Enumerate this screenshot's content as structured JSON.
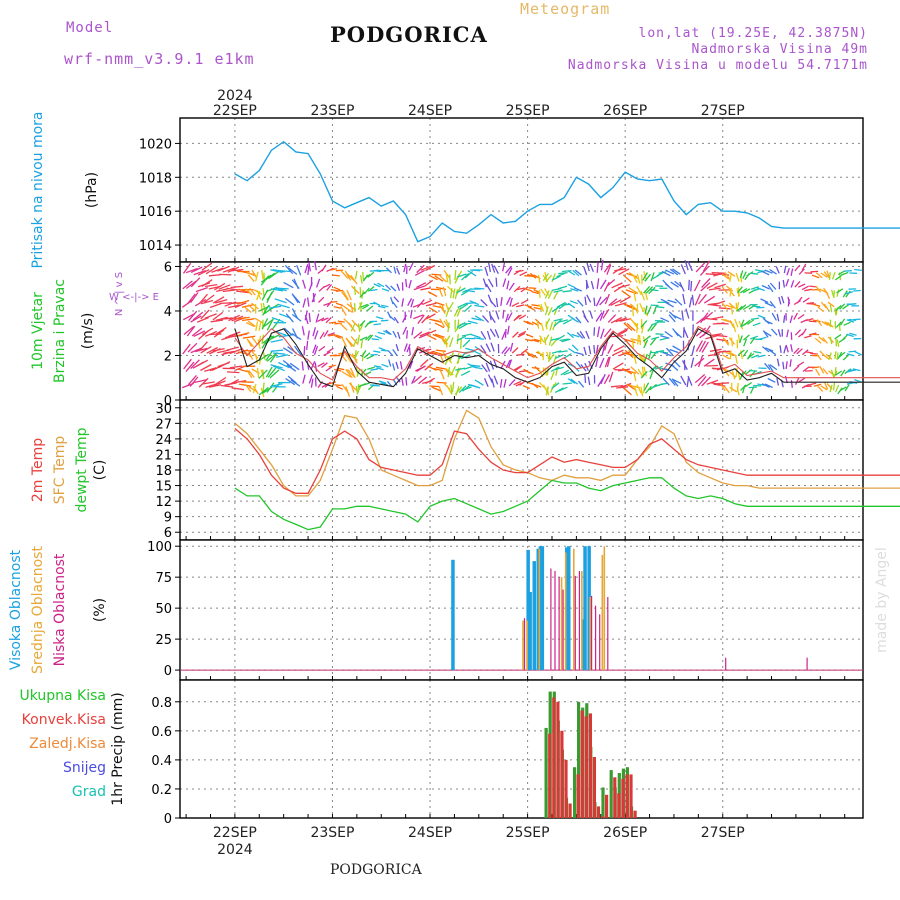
{
  "header": {
    "model_label": "Model",
    "model_name": "wrf-nmm_v3.9.1 e1km",
    "title": "PODGORICA",
    "meteogram_label": "Meteogram",
    "lonlat": "lon,lat (19.25E, 42.3875N)",
    "elevation": "Nadmorska Visina 49m",
    "model_elevation": "Nadmorska Visina u modelu 54.7171m",
    "footer_title": "PODGORICA",
    "watermark": "made by Angel"
  },
  "colors": {
    "pressure": "#1ba1e2",
    "temp2m": "#e8413c",
    "sfc": "#e0a040",
    "dewpt": "#22c52a",
    "high_cloud": "#1ba1e2",
    "mid_cloud": "#e6a838",
    "low_cloud": "#cc2288",
    "total_precip": "#3b9a2f",
    "conv_precip": "#d83838",
    "grid": "#888888"
  },
  "chart_data": [
    {
      "id": "pressure",
      "type": "line",
      "ylabel_lines": [
        "Pritisak na nivou mora",
        "(hPa)"
      ],
      "ylim": [
        1013,
        1021.5
      ],
      "yticks": [
        1014,
        1016,
        1018,
        1020
      ],
      "top_axis_year": "2024",
      "top_axis_dates": [
        "22SEP",
        "23SEP",
        "24SEP",
        "25SEP",
        "26SEP",
        "27SEP"
      ],
      "x_hours": [
        0,
        3,
        6,
        9,
        12,
        15,
        18,
        21,
        24,
        27,
        30,
        33,
        36,
        39,
        42,
        45,
        48,
        51,
        54,
        57,
        60,
        63,
        66,
        69,
        72,
        75,
        78,
        81,
        84,
        87,
        90,
        93,
        96,
        99,
        102,
        105,
        108,
        111,
        114,
        117,
        120,
        123,
        126,
        129,
        132,
        135,
        138,
        141,
        144,
        147,
        150,
        153,
        156,
        159,
        162,
        165,
        168
      ],
      "series": [
        {
          "name": "",
          "values": [
            1018.2,
            1017.8,
            1018.4,
            1019.6,
            1020.1,
            1019.5,
            1019.4,
            1018.2,
            1016.6,
            1016.2,
            1016.5,
            1016.8,
            1016.3,
            1016.6,
            1015.8,
            1014.2,
            1014.5,
            1015.3,
            1014.8,
            1014.7,
            1015.2,
            1015.8,
            1015.3,
            1015.4,
            1016.0,
            1016.4,
            1016.4,
            1016.8,
            1018.0,
            1017.6,
            1016.8,
            1017.4,
            1018.3,
            1017.9,
            1017.8,
            1017.9,
            1016.6,
            1015.8,
            1016.4,
            1016.5,
            1016.0,
            1016.0,
            1015.9,
            1015.6,
            1015.1,
            1015.0,
            1015.0,
            1015.0,
            1015.0,
            1015.0,
            1015.0,
            1015.0,
            1015.0,
            1015.0,
            1015.0,
            1015.0,
            1015.0
          ]
        }
      ]
    },
    {
      "id": "wind",
      "type": "line",
      "ylabel_lines": [
        "10m Vjetar",
        "Brzina i Pravac",
        "(m/s)"
      ],
      "compass": "W <-|-> E",
      "compass_ns": "N ^ | v S",
      "ylim": [
        0,
        6.2
      ],
      "yticks": [
        0,
        2,
        4,
        6
      ],
      "x_hours": [
        0,
        3,
        6,
        9,
        12,
        15,
        18,
        21,
        24,
        27,
        30,
        33,
        36,
        39,
        42,
        45,
        48,
        51,
        54,
        57,
        60,
        63,
        66,
        69,
        72,
        75,
        78,
        81,
        84,
        87,
        90,
        93,
        96,
        99,
        102,
        105,
        108,
        111,
        114,
        117,
        120,
        123,
        126,
        129,
        132,
        135,
        138,
        141,
        144,
        147,
        150,
        153,
        156,
        159,
        162,
        165,
        168
      ],
      "series": [
        {
          "name": "",
          "values": [
            3.2,
            1.5,
            1.8,
            3.0,
            3.2,
            2.5,
            1.6,
            0.8,
            0.6,
            2.4,
            1.3,
            0.8,
            0.7,
            0.6,
            1.2,
            2.3,
            2.0,
            1.7,
            2.0,
            1.9,
            2.0,
            1.6,
            1.4,
            1.0,
            0.8,
            1.0,
            1.5,
            1.7,
            1.1,
            1.2,
            2.3,
            3.0,
            2.5,
            1.9,
            1.5,
            1.0,
            1.7,
            2.2,
            3.2,
            2.9,
            1.2,
            1.4,
            0.9,
            1.0,
            1.2,
            0.8,
            0.8,
            0.8,
            0.8,
            0.8,
            0.8,
            0.8,
            0.8,
            0.8,
            0.8,
            0.8,
            0.8
          ]
        },
        {
          "name": "",
          "values": [
            2.8,
            2.0,
            2.6,
            3.2,
            2.8,
            2.1,
            1.8,
            1.2,
            0.9,
            2.2,
            1.5,
            1.0,
            1.0,
            0.9,
            1.4,
            2.4,
            2.1,
            2.0,
            2.2,
            2.1,
            2.3,
            1.9,
            1.6,
            1.3,
            1.0,
            1.2,
            1.6,
            1.9,
            1.4,
            1.5,
            2.4,
            3.1,
            2.7,
            2.1,
            1.8,
            1.3,
            1.9,
            2.4,
            3.3,
            3.0,
            1.4,
            1.6,
            1.1,
            1.2,
            1.3,
            1.0,
            1.0,
            1.0,
            1.0,
            1.0,
            1.0,
            1.0,
            1.0,
            1.0,
            1.0,
            1.0,
            1.0
          ]
        }
      ]
    },
    {
      "id": "temperature",
      "type": "line",
      "ylabel_lines": [
        "2m Temp",
        "SFC Temp",
        "dewpt Temp",
        "(C)"
      ],
      "ylim": [
        4.5,
        31.5
      ],
      "yticks": [
        6,
        9,
        12,
        15,
        18,
        21,
        24,
        27,
        30
      ],
      "x_hours": [
        0,
        3,
        6,
        9,
        12,
        15,
        18,
        21,
        24,
        27,
        30,
        33,
        36,
        39,
        42,
        45,
        48,
        51,
        54,
        57,
        60,
        63,
        66,
        69,
        72,
        75,
        78,
        81,
        84,
        87,
        90,
        93,
        96,
        99,
        102,
        105,
        108,
        111,
        114,
        117,
        120,
        123,
        126,
        129,
        132,
        135,
        138,
        141,
        144,
        147,
        150,
        153,
        156,
        159,
        162,
        165,
        168
      ],
      "series": [
        {
          "name": "2m Temp",
          "values": [
            26,
            24,
            21,
            17,
            14.5,
            13.5,
            13.5,
            18,
            24,
            25.5,
            24,
            20,
            18.5,
            18,
            17.5,
            17,
            17,
            19,
            25.5,
            25,
            22,
            19.5,
            18,
            17.5,
            17.5,
            19,
            20.5,
            19.5,
            20,
            19.5,
            19,
            18.5,
            18.5,
            20,
            23,
            24,
            22,
            20,
            19,
            18.5,
            18,
            17.5,
            17,
            17,
            17,
            17,
            17,
            17,
            17,
            17,
            17,
            17,
            17,
            17,
            17,
            17,
            17
          ]
        },
        {
          "name": "SFC Temp",
          "values": [
            27,
            25,
            22,
            19,
            15,
            13,
            13,
            16,
            22,
            28.5,
            28,
            24,
            18,
            17,
            16,
            15,
            15,
            16,
            24,
            29.5,
            28,
            22.5,
            19,
            18,
            17.5,
            16.5,
            16,
            17,
            16.5,
            16.5,
            16,
            17,
            17,
            20,
            22.5,
            26.5,
            25,
            19.5,
            17.5,
            16.5,
            15.5,
            15,
            15,
            14.5,
            14.5,
            14.5,
            14.5,
            14.5,
            14.5,
            14.5,
            14.5,
            14.5,
            14.5,
            14.5,
            14.5,
            14.5,
            14.5
          ]
        },
        {
          "name": "dewpt Temp",
          "values": [
            14.5,
            13,
            13,
            10,
            8.5,
            7.5,
            6.5,
            7,
            10.5,
            10.5,
            11,
            11,
            10.5,
            10,
            9.5,
            8,
            11,
            12,
            12.5,
            11.5,
            10.5,
            9.5,
            10,
            11,
            12,
            14,
            16,
            15.5,
            15.5,
            14.5,
            14,
            15,
            15.5,
            16,
            16.5,
            16.5,
            14.5,
            13,
            12.5,
            13,
            12.5,
            11.5,
            11,
            11,
            11,
            11,
            11,
            11,
            11,
            11,
            11,
            11,
            11,
            11,
            11,
            11,
            11
          ]
        }
      ]
    },
    {
      "id": "clouds",
      "type": "bar",
      "ylabel_lines": [
        "Visoka Oblacnost",
        "Srednja Oblacnost",
        "Niska Oblacnost",
        "(%)"
      ],
      "ylim": [
        -8,
        105
      ],
      "yticks": [
        0,
        25,
        50,
        75,
        100
      ],
      "bar_hours": [
        54,
        70.5,
        71.5,
        72.5,
        73,
        74,
        74.5,
        75,
        75.5,
        76,
        77,
        78,
        79,
        80,
        81,
        82,
        82.5,
        83,
        84,
        85,
        86,
        86.5,
        87,
        87.5,
        88,
        89,
        90,
        90.5,
        91,
        120,
        140
      ],
      "series": [
        {
          "name": "Visoka Oblacnost",
          "values": [
            89,
            0,
            0,
            97,
            63,
            88,
            0,
            98,
            100,
            100,
            0,
            0,
            0,
            0,
            0,
            99,
            100,
            0,
            0,
            0,
            41,
            100,
            0,
            100,
            0,
            0,
            0,
            0,
            0,
            0,
            0
          ]
        },
        {
          "name": "Srednja Oblacnost",
          "values": [
            0,
            40,
            40,
            0,
            0,
            0,
            98,
            0,
            0,
            0,
            0,
            0,
            0,
            75,
            95,
            0,
            0,
            98,
            0,
            80,
            0,
            0,
            59,
            0,
            0,
            0,
            93,
            100,
            0,
            0,
            0
          ]
        },
        {
          "name": "Niska Oblacnost",
          "values": [
            0,
            42,
            0,
            0,
            0,
            0,
            0,
            0,
            0,
            0,
            82,
            80,
            75,
            65,
            0,
            0,
            0,
            76,
            80,
            0,
            0,
            0,
            60,
            0,
            52,
            45,
            0,
            0,
            59,
            10,
            10
          ]
        }
      ]
    },
    {
      "id": "precip",
      "type": "bar",
      "ylabel_lines": [
        "1hr Precip (mm)"
      ],
      "legend": [
        "Ukupna Kisa",
        "Konvek.Kisa",
        "Zaledj.Kisa",
        "Snijeg",
        "Grad"
      ],
      "ylim": [
        0,
        0.95
      ],
      "yticks": [
        0,
        0.2,
        0.4,
        0.6,
        0.8
      ],
      "bottom_axis_dates": [
        "22SEP",
        "23SEP",
        "24SEP",
        "25SEP",
        "26SEP",
        "27SEP"
      ],
      "bottom_axis_year": "2024",
      "bar_hours": [
        77,
        78,
        79,
        80,
        81,
        82,
        84,
        85,
        86,
        87,
        88,
        89,
        90,
        91,
        93,
        94,
        95,
        96,
        97,
        98
      ],
      "series": [
        {
          "name": "Ukupna Kisa",
          "values": [
            0.62,
            0.87,
            0.87,
            0.67,
            0.47,
            0.14,
            0.35,
            0.8,
            0.76,
            0.79,
            0.49,
            0.11,
            0.02,
            0.21,
            0.33,
            0.21,
            0.31,
            0.34,
            0.35,
            0.08
          ]
        },
        {
          "name": "Konvek.Kisa",
          "values": [
            0.58,
            0.83,
            0.8,
            0.6,
            0.4,
            0.1,
            0.3,
            0.74,
            0.7,
            0.72,
            0.42,
            0.08,
            0.01,
            0.16,
            0.28,
            0.17,
            0.27,
            0.3,
            0.3,
            0.05
          ]
        }
      ]
    }
  ]
}
